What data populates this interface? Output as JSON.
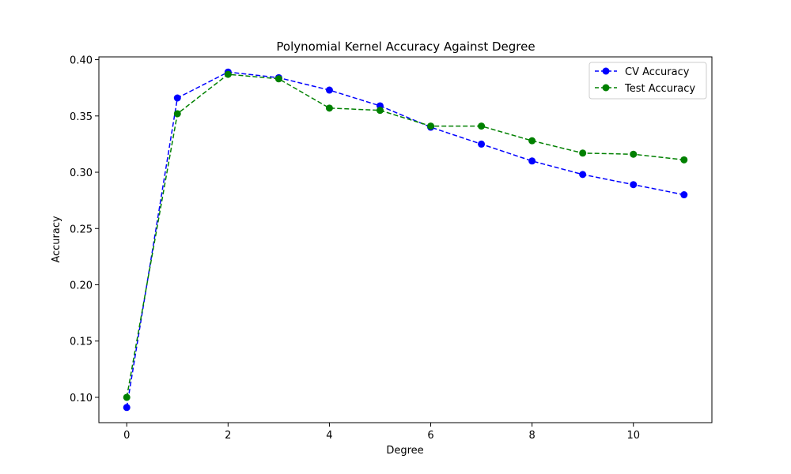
{
  "chart_data": {
    "type": "line",
    "title": "Polynomial Kernel Accuracy Against Degree",
    "xlabel": "Degree",
    "ylabel": "Accuracy",
    "x": [
      0,
      1,
      2,
      3,
      4,
      5,
      6,
      7,
      8,
      9,
      10,
      11
    ],
    "xlim": [
      -0.55,
      11.55
    ],
    "ylim": [
      0.0775,
      0.4025
    ],
    "xticks": [
      0,
      2,
      4,
      6,
      8,
      10
    ],
    "yticks": [
      0.1,
      0.15,
      0.2,
      0.25,
      0.3,
      0.35,
      0.4
    ],
    "ytick_labels": [
      "0.10",
      "0.15",
      "0.20",
      "0.25",
      "0.30",
      "0.35",
      "0.40"
    ],
    "grid": false,
    "legend_position": "top-right",
    "series": [
      {
        "name": "CV Accuracy",
        "color": "#0000ff",
        "line_style": "dashed",
        "marker": "circle",
        "values": [
          0.091,
          0.366,
          0.389,
          0.384,
          0.373,
          0.359,
          0.34,
          0.325,
          0.31,
          0.298,
          0.289,
          0.28
        ]
      },
      {
        "name": "Test Accuracy",
        "color": "#008000",
        "line_style": "dashed",
        "marker": "circle",
        "values": [
          0.1,
          0.352,
          0.387,
          0.383,
          0.357,
          0.355,
          0.341,
          0.341,
          0.328,
          0.317,
          0.316,
          0.311
        ]
      }
    ]
  }
}
